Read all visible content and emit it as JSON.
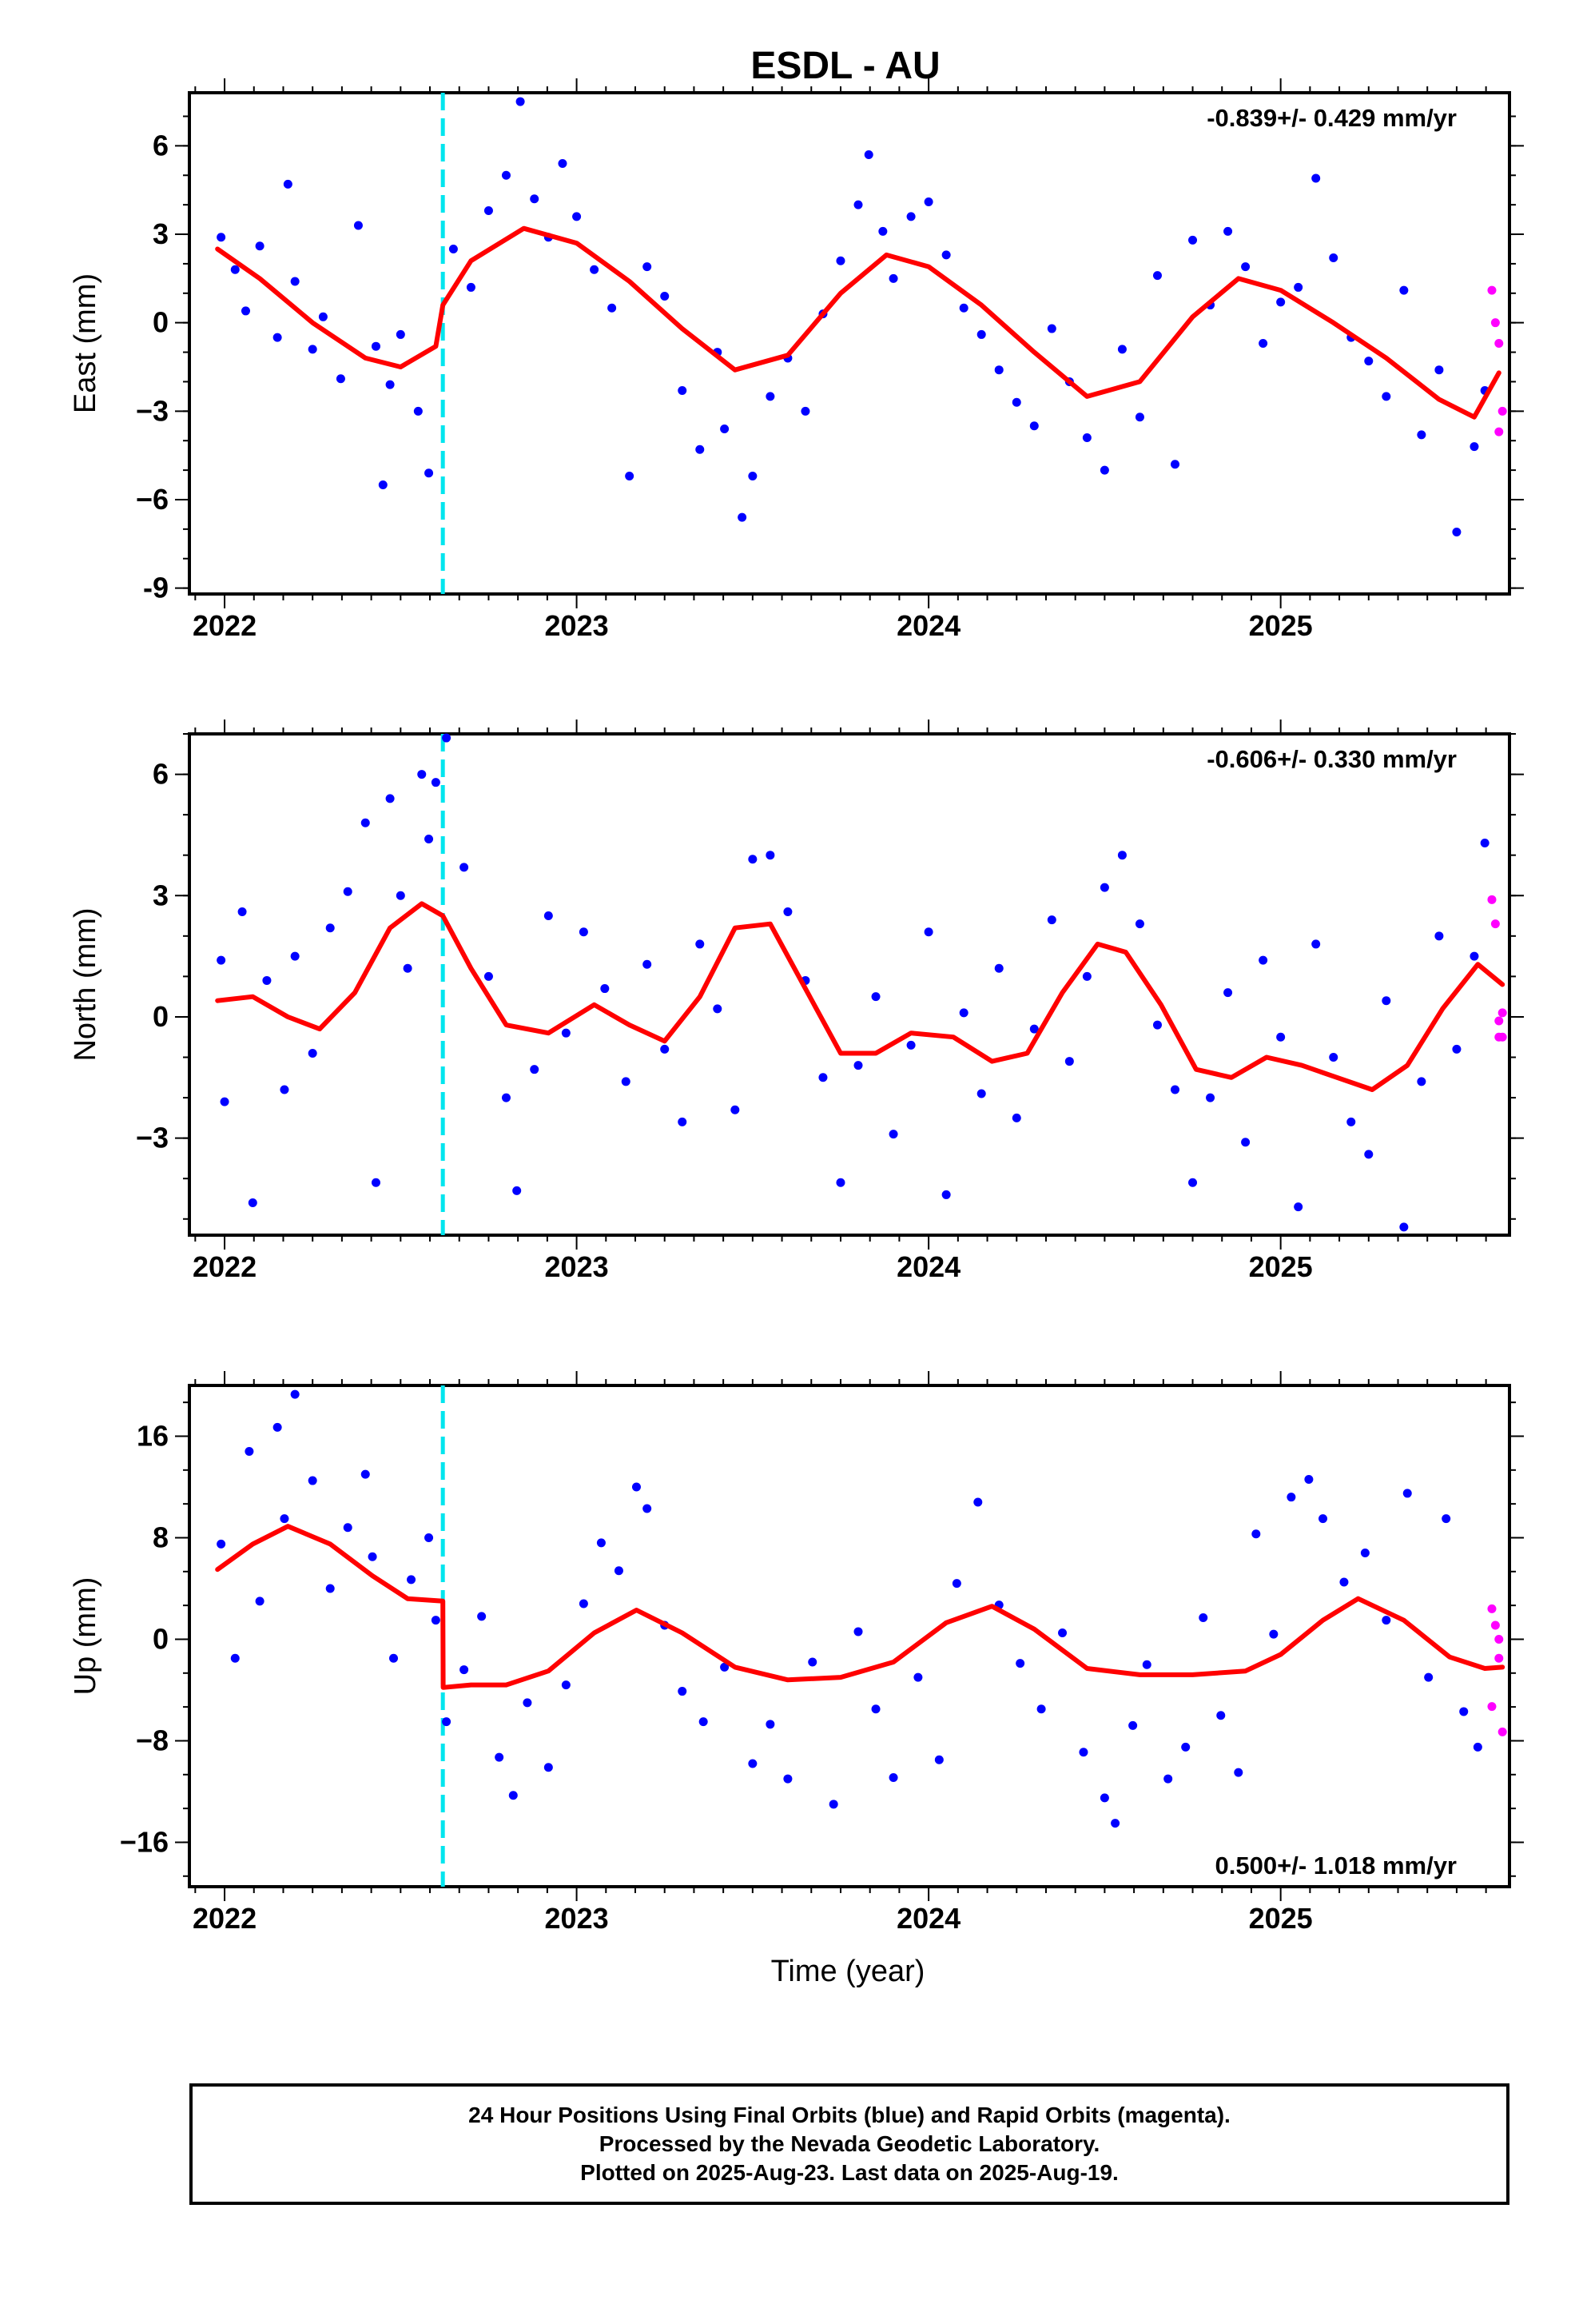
{
  "title": "ESDL - AU",
  "colors": {
    "final_points": "#0000ff",
    "rapid_points": "#ff00ff",
    "model_curve": "#ff0000",
    "equipment_change": "#00e5ee"
  },
  "footer": {
    "line1": "24 Hour Positions Using Final Orbits (blue) and Rapid Orbits (magenta).",
    "line2": "Processed by the Nevada Geodetic Laboratory.",
    "line3": "Plotted on 2025-Aug-23. Last data on 2025-Aug-19."
  },
  "chart_data": [
    {
      "type": "scatter",
      "name": "east",
      "ylabel": "East (mm)",
      "rate_label": "-0.839+/- 0.429 mm/yr",
      "xlabel": "",
      "xlim": [
        2021.9,
        2025.65
      ],
      "ylim": [
        -9.2,
        7.8
      ],
      "x_ticks": [
        2022,
        2023,
        2024,
        2025
      ],
      "y_ticks": [
        -9,
        -6,
        -3,
        0,
        3,
        6
      ],
      "y_tick_labels": [
        "-9",
        "−6",
        "−3",
        "0",
        "3",
        "6"
      ],
      "equipment_change_x": 2022.62,
      "model_curve": {
        "x": [
          2021.98,
          2022.1,
          2022.25,
          2022.4,
          2022.5,
          2022.6,
          2022.62,
          2022.7,
          2022.85,
          2023.0,
          2023.15,
          2023.3,
          2023.45,
          2023.6,
          2023.75,
          2023.88,
          2024.0,
          2024.15,
          2024.3,
          2024.45,
          2024.6,
          2024.75,
          2024.88,
          2025.0,
          2025.15,
          2025.3,
          2025.45,
          2025.55,
          2025.62
        ],
        "y": [
          2.5,
          1.5,
          0.0,
          -1.2,
          -1.5,
          -0.8,
          0.6,
          2.1,
          3.2,
          2.7,
          1.4,
          -0.2,
          -1.6,
          -1.1,
          1.0,
          2.3,
          1.9,
          0.6,
          -1.0,
          -2.5,
          -2.0,
          0.2,
          1.5,
          1.1,
          0.0,
          -1.2,
          -2.6,
          -3.2,
          -1.7
        ]
      },
      "final_points": {
        "x": [
          2021.99,
          2022.03,
          2022.06,
          2022.1,
          2022.15,
          2022.18,
          2022.2,
          2022.25,
          2022.28,
          2022.33,
          2022.38,
          2022.43,
          2022.45,
          2022.47,
          2022.5,
          2022.55,
          2022.58,
          2022.65,
          2022.7,
          2022.75,
          2022.8,
          2022.84,
          2022.88,
          2022.92,
          2022.96,
          2023.0,
          2023.05,
          2023.1,
          2023.15,
          2023.2,
          2023.25,
          2023.3,
          2023.35,
          2023.4,
          2023.42,
          2023.47,
          2023.5,
          2023.55,
          2023.6,
          2023.65,
          2023.7,
          2023.75,
          2023.8,
          2023.83,
          2023.87,
          2023.9,
          2023.95,
          2024.0,
          2024.05,
          2024.1,
          2024.15,
          2024.2,
          2024.25,
          2024.3,
          2024.35,
          2024.4,
          2024.45,
          2024.5,
          2024.55,
          2024.6,
          2024.65,
          2024.7,
          2024.75,
          2024.8,
          2024.85,
          2024.9,
          2024.95,
          2025.0,
          2025.05,
          2025.1,
          2025.15,
          2025.2,
          2025.25,
          2025.3,
          2025.35,
          2025.4,
          2025.45,
          2025.5,
          2025.55,
          2025.58
        ],
        "y": [
          2.9,
          1.8,
          0.4,
          2.6,
          -0.5,
          4.7,
          1.4,
          -0.9,
          0.2,
          -1.9,
          3.3,
          -0.8,
          -5.5,
          -2.1,
          -0.4,
          -3.0,
          -5.1,
          2.5,
          1.2,
          3.8,
          5.0,
          7.5,
          4.2,
          2.9,
          5.4,
          3.6,
          1.8,
          0.5,
          -5.2,
          1.9,
          0.9,
          -2.3,
          -4.3,
          -1.0,
          -3.6,
          -6.6,
          -5.2,
          -2.5,
          -1.2,
          -3.0,
          0.3,
          2.1,
          4.0,
          5.7,
          3.1,
          1.5,
          3.6,
          4.1,
          2.3,
          0.5,
          -0.4,
          -1.6,
          -2.7,
          -3.5,
          -0.2,
          -2.0,
          -3.9,
          -5.0,
          -0.9,
          -3.2,
          1.6,
          -4.8,
          2.8,
          0.6,
          3.1,
          1.9,
          -0.7,
          0.7,
          1.2,
          4.9,
          2.2,
          -0.5,
          -1.3,
          -2.5,
          1.1,
          -3.8,
          -1.6,
          -7.1,
          -4.2,
          -2.3
        ]
      },
      "rapid_points": {
        "x": [
          2025.6,
          2025.61,
          2025.62,
          2025.63,
          2025.62
        ],
        "y": [
          1.1,
          0.0,
          -0.7,
          -3.0,
          -3.7
        ]
      }
    },
    {
      "type": "scatter",
      "name": "north",
      "ylabel": "North (mm)",
      "rate_label": "-0.606+/- 0.330 mm/yr",
      "xlabel": "",
      "xlim": [
        2021.9,
        2025.65
      ],
      "ylim": [
        -5.4,
        7.0
      ],
      "x_ticks": [
        2022,
        2023,
        2024,
        2025
      ],
      "y_ticks": [
        -3,
        0,
        3,
        6
      ],
      "y_tick_labels": [
        "−3",
        "0",
        "3",
        "6"
      ],
      "equipment_change_x": 2022.62,
      "model_curve": {
        "x": [
          2021.98,
          2022.08,
          2022.18,
          2022.27,
          2022.37,
          2022.47,
          2022.56,
          2022.62,
          2022.7,
          2022.8,
          2022.92,
          2023.05,
          2023.15,
          2023.25,
          2023.35,
          2023.45,
          2023.55,
          2023.65,
          2023.75,
          2023.85,
          2023.95,
          2024.07,
          2024.18,
          2024.28,
          2024.38,
          2024.48,
          2024.56,
          2024.66,
          2024.76,
          2024.86,
          2024.96,
          2025.06,
          2025.16,
          2025.26,
          2025.36,
          2025.46,
          2025.56,
          2025.63
        ],
        "y": [
          0.4,
          0.5,
          0.0,
          -0.3,
          0.6,
          2.2,
          2.8,
          2.5,
          1.2,
          -0.2,
          -0.4,
          0.3,
          -0.2,
          -0.6,
          0.5,
          2.2,
          2.3,
          0.7,
          -0.9,
          -0.9,
          -0.4,
          -0.5,
          -1.1,
          -0.9,
          0.6,
          1.8,
          1.6,
          0.3,
          -1.3,
          -1.5,
          -1.0,
          -1.2,
          -1.5,
          -1.8,
          -1.2,
          0.2,
          1.3,
          0.8
        ]
      },
      "final_points": {
        "x": [
          2021.99,
          2022.0,
          2022.05,
          2022.08,
          2022.12,
          2022.17,
          2022.2,
          2022.25,
          2022.3,
          2022.35,
          2022.4,
          2022.43,
          2022.47,
          2022.5,
          2022.52,
          2022.56,
          2022.58,
          2022.6,
          2022.63,
          2022.68,
          2022.75,
          2022.8,
          2022.83,
          2022.88,
          2022.92,
          2022.97,
          2023.02,
          2023.08,
          2023.14,
          2023.2,
          2023.25,
          2023.3,
          2023.35,
          2023.4,
          2023.45,
          2023.5,
          2023.55,
          2023.6,
          2023.65,
          2023.7,
          2023.75,
          2023.8,
          2023.85,
          2023.9,
          2023.95,
          2024.0,
          2024.05,
          2024.1,
          2024.15,
          2024.2,
          2024.25,
          2024.3,
          2024.35,
          2024.4,
          2024.45,
          2024.5,
          2024.55,
          2024.6,
          2024.65,
          2024.7,
          2024.75,
          2024.8,
          2024.85,
          2024.9,
          2024.95,
          2025.0,
          2025.05,
          2025.1,
          2025.15,
          2025.2,
          2025.25,
          2025.3,
          2025.35,
          2025.4,
          2025.45,
          2025.5,
          2025.55,
          2025.58
        ],
        "y": [
          1.4,
          -2.1,
          2.6,
          -4.6,
          0.9,
          -1.8,
          1.5,
          -0.9,
          2.2,
          3.1,
          4.8,
          -4.1,
          5.4,
          3.0,
          1.2,
          6.0,
          4.4,
          5.8,
          6.9,
          3.7,
          1.0,
          -2.0,
          -4.3,
          -1.3,
          2.5,
          -0.4,
          2.1,
          0.7,
          -1.6,
          1.3,
          -0.8,
          -2.6,
          1.8,
          0.2,
          -2.3,
          3.9,
          4.0,
          2.6,
          0.9,
          -1.5,
          -4.1,
          -1.2,
          0.5,
          -2.9,
          -0.7,
          2.1,
          -4.4,
          0.1,
          -1.9,
          1.2,
          -2.5,
          -0.3,
          2.4,
          -1.1,
          1.0,
          3.2,
          4.0,
          2.3,
          -0.2,
          -1.8,
          -4.1,
          -2.0,
          0.6,
          -3.1,
          1.4,
          -0.5,
          -4.7,
          1.8,
          -1.0,
          -2.6,
          -3.4,
          0.4,
          -5.2,
          -1.6,
          2.0,
          -0.8,
          1.5,
          4.3
        ]
      },
      "rapid_points": {
        "x": [
          2025.6,
          2025.61,
          2025.62,
          2025.62,
          2025.63,
          2025.63
        ],
        "y": [
          2.9,
          2.3,
          -0.1,
          -0.5,
          0.1,
          -0.5
        ]
      }
    },
    {
      "type": "scatter",
      "name": "up",
      "ylabel": "Up (mm)",
      "rate_label": "0.500+/- 1.018 mm/yr",
      "xlabel": "Time (year)",
      "xlim": [
        2021.9,
        2025.65
      ],
      "ylim": [
        -19.5,
        20.0
      ],
      "x_ticks": [
        2022,
        2023,
        2024,
        2025
      ],
      "y_ticks": [
        -16,
        -8,
        0,
        8,
        16
      ],
      "y_tick_labels": [
        "−16",
        "−8",
        "0",
        "8",
        "16"
      ],
      "equipment_change_x": 2022.62,
      "model_curve": {
        "x": [
          2021.98,
          2022.08,
          2022.18,
          2022.3,
          2022.42,
          2022.52,
          2022.62,
          2022.621,
          2022.7,
          2022.8,
          2022.92,
          2023.05,
          2023.17,
          2023.3,
          2023.45,
          2023.6,
          2023.75,
          2023.9,
          2024.05,
          2024.18,
          2024.3,
          2024.45,
          2024.6,
          2024.75,
          2024.9,
          2025.0,
          2025.12,
          2025.22,
          2025.35,
          2025.48,
          2025.58,
          2025.63
        ],
        "y": [
          5.5,
          7.5,
          8.9,
          7.5,
          5.0,
          3.2,
          3.0,
          -3.8,
          -3.6,
          -3.6,
          -2.5,
          0.5,
          2.3,
          0.5,
          -2.2,
          -3.2,
          -3.0,
          -1.8,
          1.3,
          2.6,
          0.8,
          -2.3,
          -2.8,
          -2.8,
          -2.5,
          -1.2,
          1.5,
          3.2,
          1.5,
          -1.4,
          -2.3,
          -2.2
        ]
      },
      "final_points": {
        "x": [
          2021.99,
          2022.03,
          2022.07,
          2022.1,
          2022.15,
          2022.17,
          2022.2,
          2022.25,
          2022.3,
          2022.35,
          2022.4,
          2022.42,
          2022.48,
          2022.53,
          2022.58,
          2022.6,
          2022.63,
          2022.68,
          2022.73,
          2022.78,
          2022.82,
          2022.86,
          2022.92,
          2022.97,
          2023.02,
          2023.07,
          2023.12,
          2023.17,
          2023.2,
          2023.25,
          2023.3,
          2023.36,
          2023.42,
          2023.5,
          2023.55,
          2023.6,
          2023.67,
          2023.73,
          2023.8,
          2023.85,
          2023.9,
          2023.97,
          2024.03,
          2024.08,
          2024.14,
          2024.2,
          2024.26,
          2024.32,
          2024.38,
          2024.44,
          2024.5,
          2024.53,
          2024.58,
          2024.62,
          2024.68,
          2024.73,
          2024.78,
          2024.83,
          2024.88,
          2024.93,
          2024.98,
          2025.03,
          2025.08,
          2025.12,
          2025.18,
          2025.24,
          2025.3,
          2025.36,
          2025.42,
          2025.47,
          2025.52,
          2025.56
        ],
        "y": [
          7.5,
          -1.5,
          14.8,
          3.0,
          16.7,
          9.5,
          19.3,
          12.5,
          4.0,
          8.8,
          13.0,
          6.5,
          -1.5,
          4.7,
          8.0,
          1.5,
          -6.5,
          -2.4,
          1.8,
          -9.3,
          -12.3,
          -5.0,
          -10.1,
          -3.6,
          2.8,
          7.6,
          5.4,
          12.0,
          10.3,
          1.1,
          -4.1,
          -6.5,
          -2.2,
          -9.8,
          -6.7,
          -11.0,
          -1.8,
          -13.0,
          0.6,
          -5.5,
          -10.9,
          -3.0,
          -9.5,
          4.4,
          10.8,
          2.7,
          -1.9,
          -5.5,
          0.5,
          -8.9,
          -12.5,
          -14.5,
          -6.8,
          -2.0,
          -11.0,
          -8.5,
          1.7,
          -6.0,
          -10.5,
          8.3,
          0.4,
          11.2,
          12.6,
          9.5,
          4.5,
          6.8,
          1.5,
          11.5,
          -3.0,
          9.5,
          -5.7,
          -8.5
        ]
      },
      "rapid_points": {
        "x": [
          2025.6,
          2025.61,
          2025.62,
          2025.62,
          2025.6,
          2025.63
        ],
        "y": [
          2.4,
          1.1,
          0.0,
          -1.5,
          -5.3,
          -7.3
        ]
      }
    }
  ]
}
